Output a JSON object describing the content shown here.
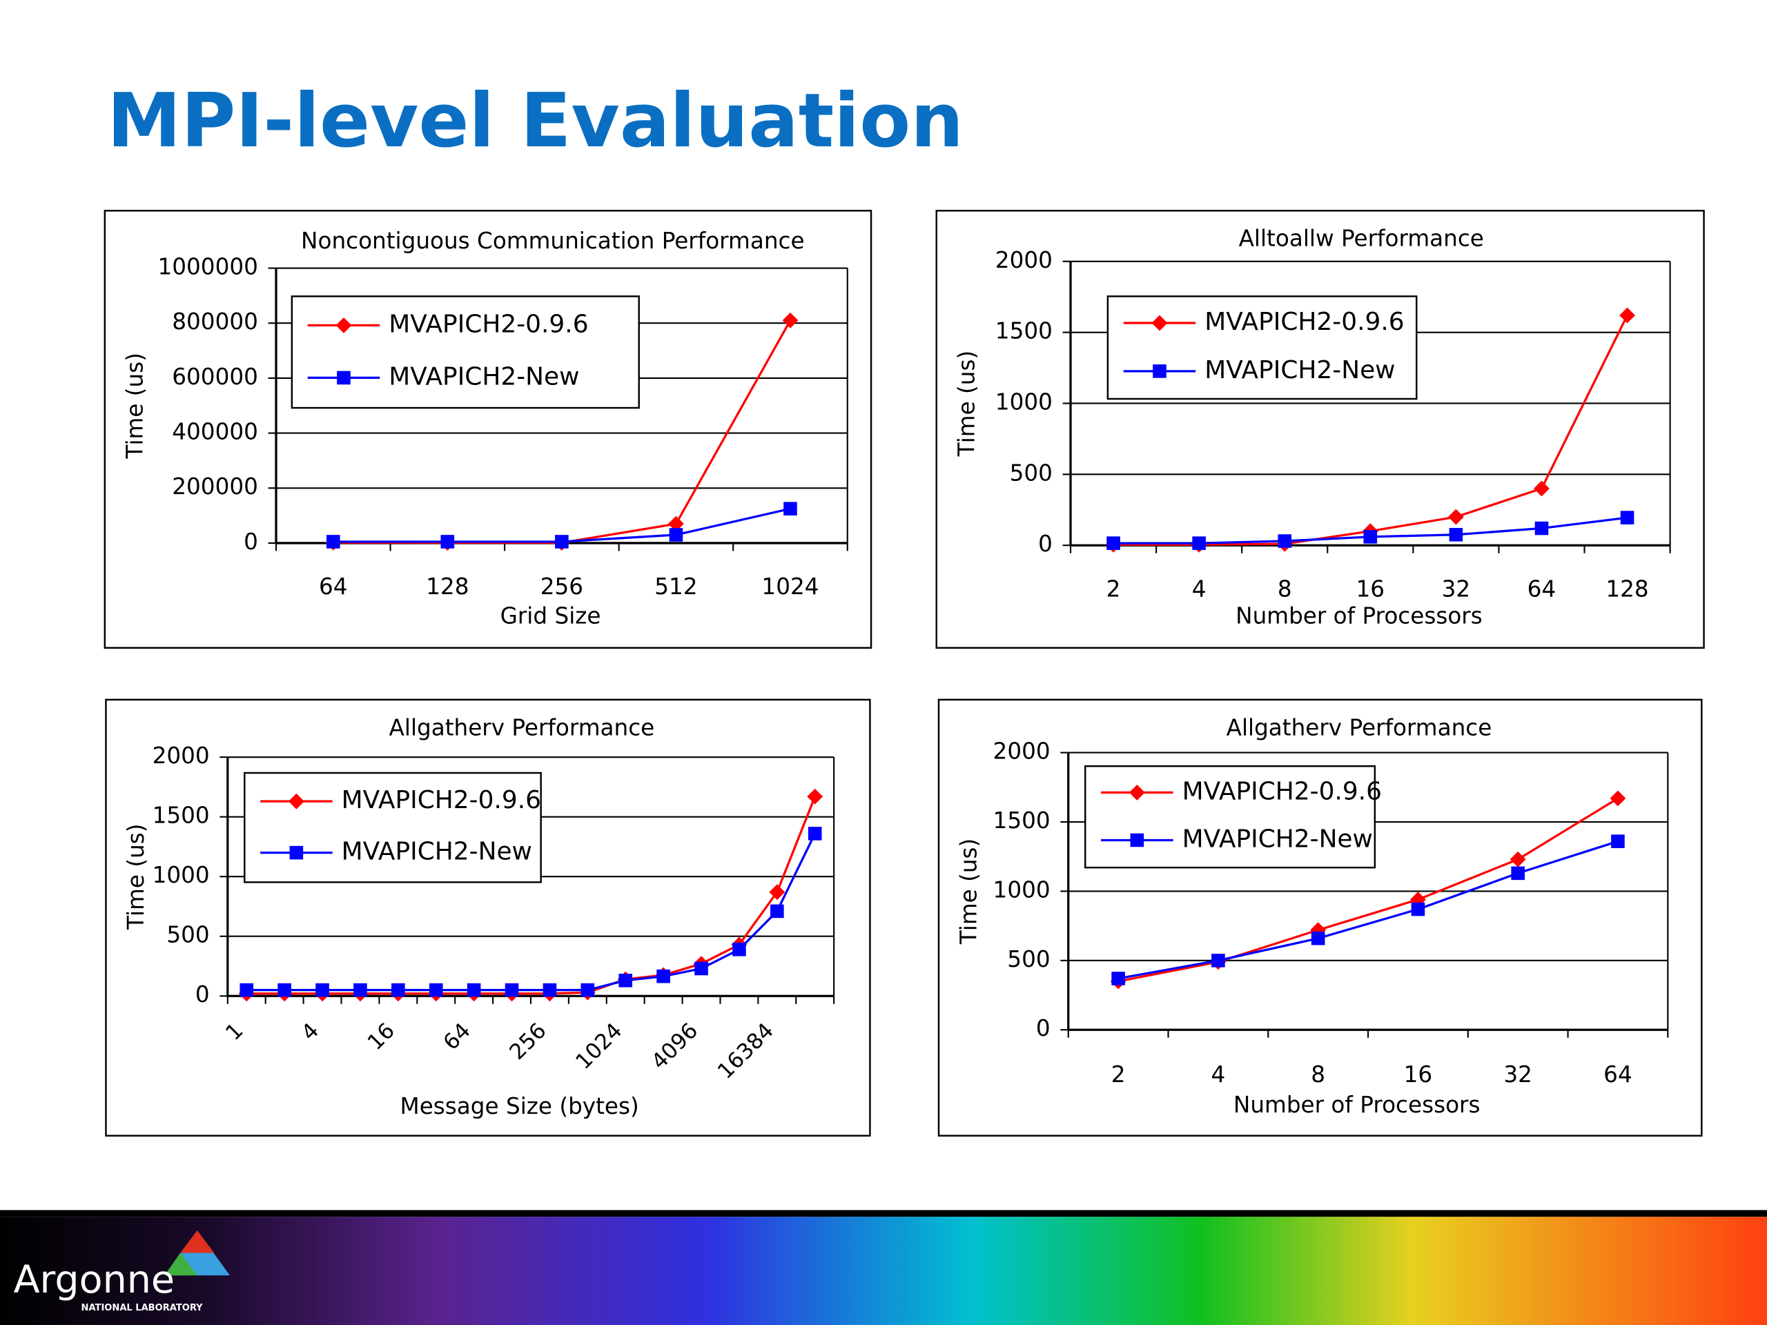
{
  "title": "MPI-level Evaluation",
  "logo": {
    "name": "Argonne",
    "subtitle": "NATIONAL LABORATORY"
  },
  "chart_data": [
    {
      "type": "line",
      "title": "Noncontiguous Communication Performance",
      "x_label": "Grid Size",
      "y_label": "Time (us)",
      "categories": [
        "64",
        "128",
        "256",
        "512",
        "1024"
      ],
      "series": [
        {
          "name": "MVAPICH2-0.9.6",
          "color": "#ff0000",
          "marker": "diamond",
          "values": [
            2000,
            1000,
            1000,
            70000,
            810000
          ]
        },
        {
          "name": "MVAPICH2-New",
          "color": "#0000ff",
          "marker": "square",
          "values": [
            5000,
            5000,
            5000,
            30000,
            125000
          ]
        }
      ],
      "ylim": [
        0,
        1000000
      ],
      "yticks": [
        0,
        200000,
        400000,
        600000,
        800000,
        1000000
      ],
      "grid": true,
      "legend": "upper left"
    },
    {
      "type": "line",
      "title": "Alltoallw Performance",
      "x_label": "Number of Processors",
      "y_label": "Time (us)",
      "categories": [
        "2",
        "4",
        "8",
        "16",
        "32",
        "64",
        "128"
      ],
      "series": [
        {
          "name": "MVAPICH2-0.9.6",
          "color": "#ff0000",
          "marker": "diamond",
          "values": [
            5,
            5,
            10,
            100,
            200,
            400,
            1620
          ]
        },
        {
          "name": "MVAPICH2-New",
          "color": "#0000ff",
          "marker": "square",
          "values": [
            15,
            15,
            30,
            60,
            75,
            120,
            195
          ]
        }
      ],
      "ylim": [
        0,
        2000
      ],
      "yticks": [
        0,
        500,
        1000,
        1500,
        2000
      ],
      "grid": true,
      "legend": "upper left"
    },
    {
      "type": "line",
      "title": "Allgatherv Performance",
      "x_label": "Message Size (bytes)",
      "y_label": "Time (us)",
      "categories": [
        "1",
        null,
        "4",
        null,
        "16",
        null,
        "64",
        null,
        "256",
        null,
        "1024",
        null,
        "4096",
        null,
        "16384",
        null
      ],
      "series": [
        {
          "name": "MVAPICH2-0.9.6",
          "color": "#ff0000",
          "marker": "diamond",
          "values": [
            20,
            20,
            20,
            20,
            20,
            20,
            20,
            20,
            20,
            30,
            140,
            175,
            270,
            430,
            870,
            1670
          ]
        },
        {
          "name": "MVAPICH2-New",
          "color": "#0000ff",
          "marker": "square",
          "values": [
            50,
            50,
            50,
            50,
            50,
            50,
            50,
            50,
            50,
            50,
            130,
            165,
            230,
            390,
            710,
            1360
          ]
        }
      ],
      "ylim": [
        0,
        2000
      ],
      "yticks": [
        0,
        500,
        1000,
        1500,
        2000
      ],
      "grid": true,
      "legend": "upper left"
    },
    {
      "type": "line",
      "title": "Allgatherv Performance",
      "x_label": "Number of Processors",
      "y_label": "Time (us)",
      "categories": [
        "2",
        "4",
        "8",
        "16",
        "32",
        "64"
      ],
      "series": [
        {
          "name": "MVAPICH2-0.9.6",
          "color": "#ff0000",
          "marker": "diamond",
          "values": [
            350,
            490,
            720,
            940,
            1230,
            1670
          ]
        },
        {
          "name": "MVAPICH2-New",
          "color": "#0000ff",
          "marker": "square",
          "values": [
            370,
            500,
            660,
            870,
            1130,
            1360
          ]
        }
      ],
      "ylim": [
        0,
        2000
      ],
      "yticks": [
        0,
        500,
        1000,
        1500,
        2000
      ],
      "grid": true,
      "legend": "upper left"
    }
  ]
}
